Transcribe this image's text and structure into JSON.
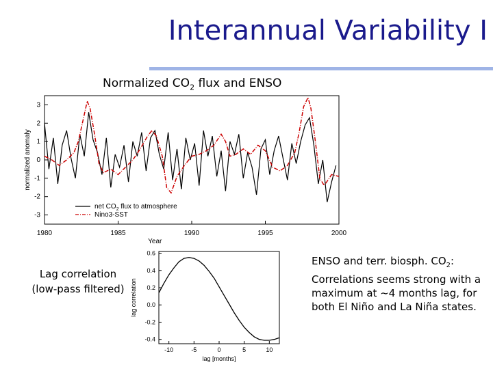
{
  "slide": {
    "title": "Interannual Variability I",
    "subtitle": "Normalized CO2 flux and ENSO",
    "subtitle_parts": {
      "pre": "Normalized CO",
      "sub": "2",
      "post": " flux and ENSO"
    },
    "lag_caption_line1": "Lag correlation",
    "lag_caption_line2": "(low-pass filtered)",
    "notes_line1": "ENSO and terr. biosph. CO2:",
    "notes_line1_parts": {
      "pre": "ENSO and terr. biosph. CO",
      "sub": "2",
      "post": ":"
    },
    "notes_rest": "Correlations seems strong with a maximum at ~4 months lag, for both El Niño and La Niña states."
  },
  "chart_data": [
    {
      "type": "line",
      "title": "",
      "xlabel": "Year",
      "ylabel": "normalized anomaly",
      "xlim": [
        1980,
        2000
      ],
      "ylim": [
        -3.5,
        3.5
      ],
      "xticks": [
        "1980",
        "1985",
        "1990",
        "1995",
        "2000"
      ],
      "yticks": [
        "-3",
        "-2",
        "-1",
        "0",
        "1",
        "2",
        "3"
      ],
      "legend_position": "bottom-left",
      "series": [
        {
          "name": "net CO2 flux to atmosphere",
          "legend_parts": {
            "pre": "net CO",
            "sub": "2",
            "post": " flux to atmosphere"
          },
          "style": "solid",
          "color": "#000000",
          "x": [
            1980.0,
            1980.3,
            1980.6,
            1980.9,
            1981.2,
            1981.5,
            1981.8,
            1982.1,
            1982.4,
            1982.7,
            1983.0,
            1983.3,
            1983.6,
            1983.9,
            1984.2,
            1984.5,
            1984.8,
            1985.1,
            1985.4,
            1985.7,
            1986.0,
            1986.3,
            1986.6,
            1986.9,
            1987.2,
            1987.5,
            1987.8,
            1988.1,
            1988.4,
            1988.7,
            1989.0,
            1989.3,
            1989.6,
            1989.9,
            1990.2,
            1990.5,
            1990.8,
            1991.1,
            1991.4,
            1991.7,
            1992.0,
            1992.3,
            1992.6,
            1992.9,
            1993.2,
            1993.5,
            1993.8,
            1994.1,
            1994.4,
            1994.7,
            1995.0,
            1995.3,
            1995.6,
            1995.9,
            1996.2,
            1996.5,
            1996.8,
            1997.1,
            1997.4,
            1997.7,
            1998.0,
            1998.3,
            1998.6,
            1998.9,
            1999.2,
            1999.5,
            1999.8
          ],
          "y": [
            2.0,
            -0.5,
            1.2,
            -1.3,
            0.8,
            1.6,
            0.1,
            -1.0,
            1.4,
            0.2,
            2.6,
            1.1,
            0.4,
            -0.8,
            1.2,
            -1.5,
            0.3,
            -0.4,
            0.8,
            -1.2,
            1.0,
            0.2,
            1.5,
            -0.6,
            1.2,
            1.6,
            0.3,
            -0.5,
            1.5,
            -1.1,
            0.6,
            -1.6,
            1.2,
            0.0,
            0.9,
            -1.4,
            1.6,
            0.2,
            1.3,
            -0.9,
            0.5,
            -1.7,
            1.0,
            0.3,
            1.4,
            -1.0,
            0.4,
            -0.4,
            -1.9,
            0.6,
            1.1,
            -0.8,
            0.5,
            1.3,
            0.1,
            -1.1,
            0.9,
            -0.2,
            1.0,
            1.9,
            2.3,
            0.8,
            -1.3,
            0.0,
            -2.3,
            -1.2,
            -0.3
          ]
        },
        {
          "name": "Nino3-SST",
          "style": "dash-dot",
          "color": "#cc0000",
          "x": [
            1980.0,
            1980.5,
            1981.0,
            1981.5,
            1982.0,
            1982.3,
            1982.6,
            1982.9,
            1983.1,
            1983.4,
            1983.7,
            1984.0,
            1984.5,
            1985.0,
            1985.5,
            1986.0,
            1986.5,
            1987.0,
            1987.3,
            1987.6,
            1988.0,
            1988.3,
            1988.6,
            1989.0,
            1989.5,
            1990.0,
            1990.5,
            1991.0,
            1991.5,
            1992.0,
            1992.3,
            1992.6,
            1993.0,
            1993.5,
            1994.0,
            1994.5,
            1995.0,
            1995.5,
            1996.0,
            1996.5,
            1997.0,
            1997.3,
            1997.6,
            1997.9,
            1998.1,
            1998.4,
            1998.7,
            1999.0,
            1999.5,
            2000.0
          ],
          "y": [
            0.2,
            0.0,
            -0.3,
            0.0,
            0.4,
            1.0,
            2.1,
            3.2,
            2.8,
            1.4,
            -0.2,
            -0.7,
            -0.5,
            -0.8,
            -0.4,
            0.0,
            0.6,
            1.3,
            1.6,
            1.3,
            0.2,
            -1.5,
            -1.8,
            -0.9,
            -0.3,
            0.2,
            0.3,
            0.5,
            0.8,
            1.4,
            1.0,
            0.2,
            0.3,
            0.6,
            0.3,
            0.8,
            0.5,
            -0.4,
            -0.6,
            -0.3,
            0.4,
            1.5,
            2.9,
            3.4,
            2.8,
            1.0,
            -1.0,
            -1.4,
            -0.8,
            -0.9
          ]
        }
      ]
    },
    {
      "type": "line",
      "title": "",
      "xlabel": "lag [months]",
      "ylabel": "lag correlation",
      "xlim": [
        -12,
        12
      ],
      "ylim": [
        -0.45,
        0.62
      ],
      "xticks": [
        "-10",
        "-5",
        "0",
        "5",
        "10"
      ],
      "yticks": [
        "0.6",
        "0.4",
        "0.2",
        "0.0",
        "-0.2",
        "-0.4"
      ],
      "series": [
        {
          "style": "solid",
          "color": "#000000",
          "x": [
            -12,
            -11,
            -10,
            -9,
            -8,
            -7,
            -6,
            -5,
            -4,
            -3,
            -2,
            -1,
            0,
            1,
            2,
            3,
            4,
            5,
            6,
            7,
            8,
            9,
            10,
            11,
            12
          ],
          "y": [
            0.14,
            0.25,
            0.35,
            0.43,
            0.5,
            0.54,
            0.55,
            0.54,
            0.51,
            0.46,
            0.39,
            0.31,
            0.21,
            0.11,
            0.01,
            -0.09,
            -0.18,
            -0.26,
            -0.32,
            -0.37,
            -0.4,
            -0.41,
            -0.41,
            -0.4,
            -0.38
          ]
        }
      ]
    }
  ]
}
